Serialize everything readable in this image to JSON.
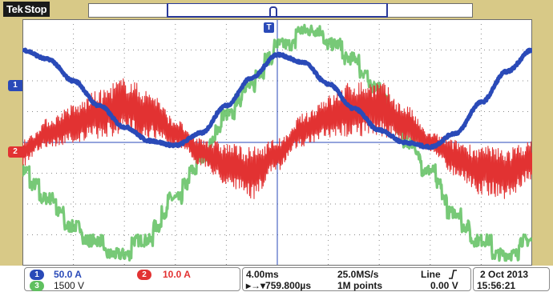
{
  "header": {
    "brand": "Tek",
    "status": "Stop"
  },
  "markers": {
    "ch1": "1",
    "ch2": "2",
    "trigger": "T"
  },
  "colors": {
    "ch1": "#2a4ab8",
    "ch2": "#e23232",
    "ch3": "#5fc05f",
    "frame": "#d8c987",
    "grid": "#8a8a8a"
  },
  "channels": [
    {
      "id": "1",
      "scale": "50.0 A"
    },
    {
      "id": "2",
      "scale": "10.0 A"
    },
    {
      "id": "3",
      "scale": "1500 V"
    }
  ],
  "timebase": {
    "scale": "4.00ms",
    "sample_rate": "25.0MS/s",
    "delay": "▸→▾759.800µs",
    "record_length": "1M points",
    "trigger_source": "Line",
    "trigger_slope_icon": "rising-edge-icon",
    "trigger_level": "0.00 V"
  },
  "datetime": {
    "date": "2 Oct  2013",
    "time": "15:56:21"
  },
  "chart_data": {
    "type": "line",
    "grid": true,
    "x_divisions": 10,
    "y_divisions": 8,
    "xlim": [
      0,
      10
    ],
    "ylim": [
      -4,
      4
    ],
    "series": [
      {
        "name": "1",
        "x": [
          0,
          0.5,
          1.0,
          1.5,
          2.0,
          2.5,
          3.0,
          3.5,
          4.0,
          4.5,
          5.0,
          5.5,
          6.0,
          6.5,
          7.0,
          7.5,
          8.0,
          8.5,
          9.0,
          9.5,
          10.0
        ],
        "y": [
          3.0,
          2.7,
          2.0,
          1.2,
          0.5,
          0.05,
          -0.1,
          0.3,
          1.2,
          2.1,
          2.85,
          2.6,
          1.9,
          1.1,
          0.4,
          0.0,
          -0.15,
          0.3,
          1.3,
          2.3,
          3.0
        ]
      },
      {
        "name": "2",
        "x": [
          0,
          0.5,
          1.0,
          1.5,
          2.0,
          2.5,
          3.0,
          3.5,
          4.0,
          4.5,
          5.0,
          5.5,
          6.0,
          6.5,
          7.0,
          7.5,
          8.0,
          8.5,
          9.0,
          9.5,
          10.0
        ],
        "y": [
          -0.3,
          0.3,
          0.6,
          0.9,
          1.2,
          0.9,
          0.3,
          -0.3,
          -0.7,
          -1.0,
          -0.4,
          0.4,
          0.8,
          1.1,
          1.1,
          0.6,
          0.0,
          -0.5,
          -0.9,
          -1.0,
          -0.6
        ],
        "noise_amplitude": 0.9
      },
      {
        "name": "3",
        "x": [
          0,
          0.5,
          1.0,
          1.5,
          2.0,
          2.5,
          3.0,
          3.5,
          4.0,
          4.5,
          5.0,
          5.5,
          6.0,
          6.5,
          7.0,
          7.5,
          8.0,
          8.5,
          9.0,
          9.5,
          10.0
        ],
        "y": [
          -1.0,
          -1.8,
          -2.8,
          -3.4,
          -3.5,
          -3.0,
          -1.8,
          -0.6,
          0.8,
          2.0,
          3.0,
          3.5,
          3.4,
          2.6,
          1.6,
          0.2,
          -1.0,
          -2.4,
          -3.3,
          -3.6,
          -3.2
        ],
        "noise_amplitude": 0.2
      }
    ]
  }
}
